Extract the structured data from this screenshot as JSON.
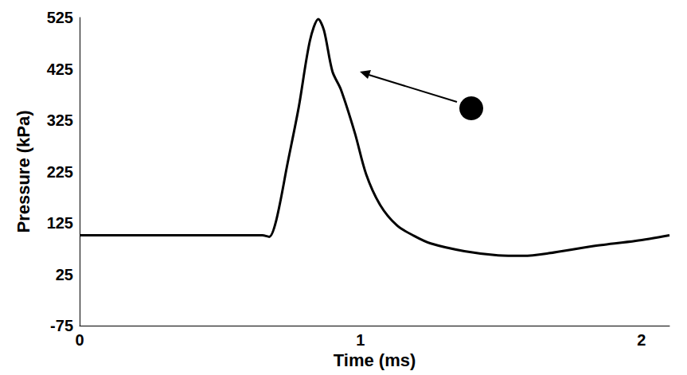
{
  "chart_data": {
    "type": "line",
    "x_label": "Time (ms)",
    "y_label": "Pressure (kPa)",
    "x": [
      0,
      0.3,
      0.6,
      0.65,
      0.675,
      0.7,
      0.74,
      0.78,
      0.82,
      0.85,
      0.87,
      0.9,
      0.93,
      0.98,
      1.02,
      1.07,
      1.13,
      1.19,
      1.25,
      1.37,
      1.49,
      1.58,
      1.67,
      1.83,
      1.98,
      2.1
    ],
    "values": [
      101,
      101,
      101,
      101,
      98,
      130,
      240,
      350,
      480,
      522,
      500,
      420,
      385,
      300,
      220,
      160,
      120,
      100,
      85,
      70,
      62,
      61,
      66,
      80,
      90,
      101
    ],
    "color": "#000000",
    "xlim": [
      0,
      2.1
    ],
    "xticks": [
      0,
      1,
      2
    ],
    "ylim": [
      -75,
      525
    ],
    "yticks": [
      -75,
      25,
      125,
      225,
      325,
      425,
      525
    ],
    "grid": false
  }
}
